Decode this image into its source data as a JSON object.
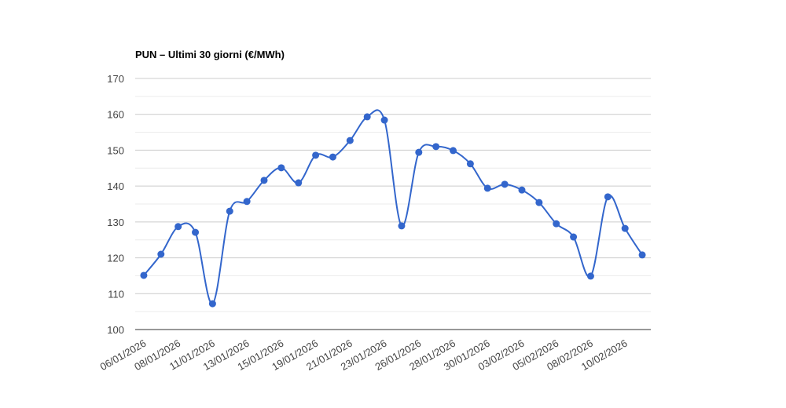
{
  "chart_data": {
    "type": "line",
    "title": "PUN – Ultimi 30 giorni (€/MWh)",
    "categories": [
      "06/01/2026",
      null,
      "08/01/2026",
      null,
      "11/01/2026",
      null,
      "13/01/2026",
      null,
      "15/01/2026",
      null,
      "19/01/2026",
      null,
      "21/01/2026",
      null,
      "23/01/2026",
      null,
      "26/01/2026",
      null,
      "28/01/2026",
      null,
      "30/01/2026",
      null,
      "03/02/2026",
      null,
      "05/02/2026",
      null,
      "08/02/2026",
      null,
      "10/02/2026",
      null
    ],
    "series": [
      {
        "name": "PUN",
        "color": "#3366cc",
        "values": [
          115.1,
          121.0,
          128.7,
          127.1,
          107.2,
          133.0,
          135.7,
          141.6,
          145.1,
          140.9,
          148.6,
          148.1,
          152.7,
          159.3,
          158.4,
          128.9,
          149.4,
          151.0,
          149.9,
          146.2,
          139.4,
          140.5,
          138.9,
          135.4,
          129.5,
          125.8,
          114.9,
          137.0,
          128.2,
          120.8
        ]
      }
    ],
    "ylim": [
      100,
      170
    ],
    "yticks": [
      100,
      110,
      120,
      130,
      140,
      150,
      160,
      170
    ],
    "grid": true
  }
}
